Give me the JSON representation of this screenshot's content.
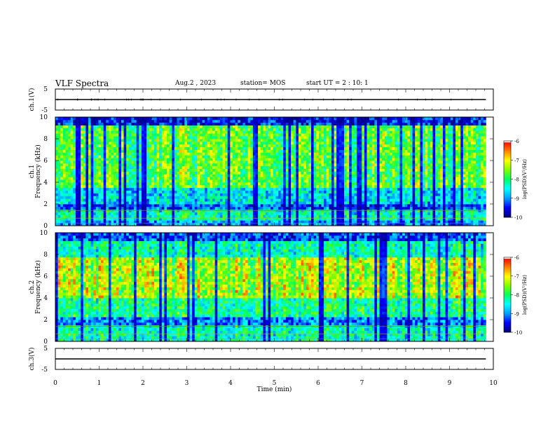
{
  "header": {
    "title": "VLF Spectra",
    "date": "Aug.2 , 2023",
    "station": "station= MOS",
    "start": "start UT = 2 : 10: 1"
  },
  "chart_data": [
    {
      "type": "line",
      "name": "ch1-waveform",
      "ylabel": "ch.1(V)",
      "yticks": [
        "5",
        "-5"
      ],
      "ylim": [
        -5,
        5
      ],
      "xlim": [
        0,
        10
      ],
      "x": [
        0,
        9.83
      ],
      "y": [
        0,
        0
      ]
    },
    {
      "type": "heatmap",
      "name": "ch1-spectrogram",
      "ylabel": "ch.1\nFrequency (kHz)",
      "yticks": [
        "0",
        "2",
        "4",
        "6",
        "8",
        "10"
      ],
      "ylim": [
        0,
        10
      ],
      "xlim": [
        0,
        10
      ],
      "data_extent_min": 9.83,
      "colorbar": {
        "label": "log(PSD)(V²/Hz)",
        "range": [
          -10,
          -6
        ],
        "ticks": [
          "-6",
          "-7",
          "-8",
          "-9",
          "-10"
        ]
      }
    },
    {
      "type": "heatmap",
      "name": "ch2-spectrogram",
      "ylabel": "ch.2\nFrequency (kHz)",
      "yticks": [
        "0",
        "2",
        "4",
        "6",
        "8",
        "10"
      ],
      "ylim": [
        0,
        10
      ],
      "xlim": [
        0,
        10
      ],
      "data_extent_min": 9.83,
      "colorbar": {
        "label": "log(PSD)(V²/Hz)",
        "range": [
          -10,
          -6
        ],
        "ticks": [
          "-6",
          "-7",
          "-8",
          "-9",
          "-10"
        ]
      }
    },
    {
      "type": "line",
      "name": "ch3-waveform",
      "ylabel": "ch.3(V)",
      "yticks": [
        "5",
        "-5"
      ],
      "ylim": [
        -5,
        5
      ],
      "xlim": [
        0,
        10
      ],
      "x": [
        0,
        9.83
      ],
      "y": [
        0,
        0
      ]
    }
  ],
  "xaxis": {
    "label": "Time (min)",
    "ticks": [
      "0",
      "1",
      "2",
      "3",
      "4",
      "5",
      "6",
      "7",
      "8",
      "9",
      "10"
    ]
  },
  "colormap": [
    "#000080",
    "#0000ff",
    "#00a0ff",
    "#00ffff",
    "#00ff60",
    "#80ff00",
    "#ffff00",
    "#ff8000",
    "#ff0000",
    "#ffffff"
  ]
}
